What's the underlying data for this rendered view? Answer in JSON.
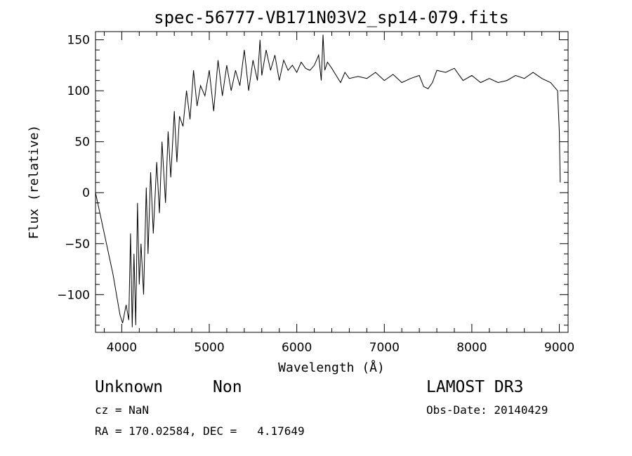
{
  "chart_data": {
    "type": "line",
    "title": "spec-56777-VB171N03V2_sp14-079.fits",
    "xlabel": "Wavelength (Å)",
    "ylabel": "Flux (relative)",
    "xlim": [
      3700,
      9100
    ],
    "ylim": [
      -137,
      158
    ],
    "xticks": [
      4000,
      5000,
      6000,
      7000,
      8000,
      9000
    ],
    "yticks": [
      -100,
      -50,
      0,
      50,
      100,
      150
    ],
    "ytick_labels": [
      "−100",
      "−50",
      "0",
      "50",
      "100",
      "150"
    ],
    "grid": false,
    "series": [
      {
        "x": [
          3700,
          3800,
          3900,
          3980,
          4010,
          4050,
          4080,
          4100,
          4120,
          4140,
          4160,
          4180,
          4200,
          4220,
          4250,
          4280,
          4300,
          4330,
          4360,
          4400,
          4430,
          4460,
          4500,
          4530,
          4560,
          4600,
          4630,
          4660,
          4700,
          4740,
          4780,
          4820,
          4860,
          4900,
          4950,
          5000,
          5050,
          5100,
          5150,
          5200,
          5250,
          5300,
          5350,
          5400,
          5450,
          5500,
          5550,
          5580,
          5600,
          5650,
          5700,
          5750,
          5800,
          5850,
          5900,
          5950,
          6000,
          6050,
          6100,
          6150,
          6200,
          6250,
          6280,
          6300,
          6320,
          6350,
          6400,
          6450,
          6500,
          6550,
          6600,
          6700,
          6800,
          6900,
          7000,
          7100,
          7200,
          7300,
          7400,
          7450,
          7500,
          7550,
          7600,
          7700,
          7800,
          7900,
          8000,
          8100,
          8200,
          8300,
          8400,
          8500,
          8600,
          8700,
          8800,
          8900,
          8950,
          8980,
          9000,
          9010
        ],
        "y": [
          0,
          -40,
          -80,
          -120,
          -128,
          -110,
          -125,
          -40,
          -132,
          -60,
          -130,
          -10,
          -90,
          -50,
          -100,
          5,
          -60,
          20,
          -40,
          30,
          -20,
          50,
          -10,
          60,
          15,
          80,
          30,
          75,
          65,
          100,
          72,
          120,
          85,
          105,
          95,
          120,
          80,
          130,
          95,
          125,
          100,
          120,
          105,
          140,
          100,
          130,
          110,
          150,
          115,
          140,
          120,
          135,
          110,
          130,
          120,
          125,
          118,
          128,
          122,
          120,
          125,
          135,
          110,
          155,
          120,
          128,
          122,
          115,
          108,
          118,
          112,
          114,
          112,
          118,
          110,
          116,
          108,
          112,
          115,
          104,
          102,
          108,
          120,
          118,
          122,
          110,
          115,
          108,
          112,
          108,
          110,
          115,
          112,
          118,
          112,
          108,
          103,
          100,
          60,
          10
        ]
      }
    ]
  },
  "footer": {
    "object_class": "Unknown",
    "subclass": "Non",
    "survey": "LAMOST DR3",
    "redshift": "cz = NaN",
    "obs_date": "Obs-Date: 20140429",
    "coords": "RA = 170.02584, DEC =   4.17649"
  }
}
